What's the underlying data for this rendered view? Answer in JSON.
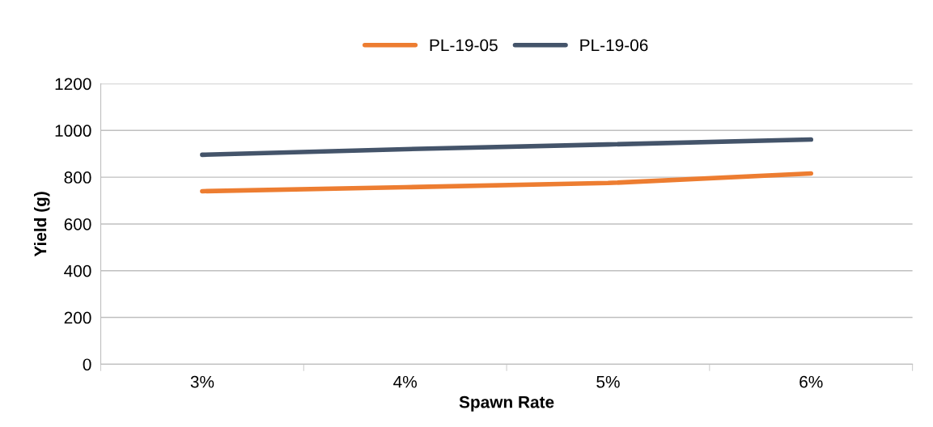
{
  "chart_data": {
    "type": "line",
    "xlabel": "Spawn Rate",
    "ylabel": "Yield (g)",
    "categories": [
      "3%",
      "4%",
      "5%",
      "6%"
    ],
    "series": [
      {
        "name": "PL-19-05",
        "color": "#ed7d31",
        "values": [
          740,
          757,
          775,
          816
        ]
      },
      {
        "name": "PL-19-06",
        "color": "#44546a",
        "values": [
          896,
          920,
          940,
          961
        ]
      }
    ],
    "ylim": [
      0,
      1200
    ],
    "yticks": [
      0,
      200,
      400,
      600,
      800,
      1000,
      1200
    ],
    "grid": "y",
    "legend": "top",
    "marker": "none",
    "line_style": "solid"
  }
}
